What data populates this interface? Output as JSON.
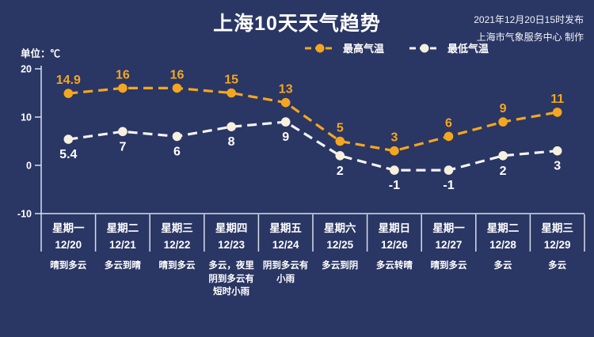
{
  "header": {
    "title": "上海10天天气趋势",
    "publish_line1": "2021年12月20日15时发布",
    "publish_line2": "上海市气象服务中心 制作"
  },
  "colors": {
    "bg": "#2A3664",
    "text": "#FFFFFF",
    "axis": "#D9DEEA",
    "max": "#F5A61F",
    "min-marker": "#F6F0DF",
    "min-line": "#F3F3F1"
  },
  "chart_data": {
    "type": "line",
    "title": "上海10天天气趋势",
    "unit": "单位：℃",
    "ylim": [
      -10,
      20
    ],
    "yticks": [
      20,
      10,
      0,
      -10
    ],
    "grid": "off",
    "legend_position": "top",
    "categories": [
      "星期一",
      "星期二",
      "星期三",
      "星期四",
      "星期五",
      "星期六",
      "星期日",
      "星期一",
      "星期二",
      "星期三"
    ],
    "dates": [
      "12/20",
      "12/21",
      "12/22",
      "12/23",
      "12/24",
      "12/25",
      "12/26",
      "12/27",
      "12/28",
      "12/29"
    ],
    "weather": [
      "晴到多云",
      "多云到晴",
      "晴到多云",
      "多云，夜里阴到多云有短时小雨",
      "阴到多云有小雨",
      "多云到阴",
      "多云转晴",
      "晴到多云",
      "多云",
      "多云"
    ],
    "series": [
      {
        "name": "最高气温",
        "values": [
          14.9,
          16,
          16,
          15,
          13,
          5,
          3,
          6,
          9,
          11
        ],
        "labels": [
          "14.9",
          "16",
          "16",
          "15",
          "13",
          "5",
          "3",
          "6",
          "9",
          "11"
        ],
        "color": "#F5A61F",
        "line_color": "#F5A61F",
        "label_color": "#F5A61F",
        "label_side": "above"
      },
      {
        "name": "最低气温",
        "values": [
          5.4,
          7,
          6,
          8,
          9,
          2,
          -1,
          -1,
          2,
          3
        ],
        "labels": [
          "5.4",
          "7",
          "6",
          "8",
          "9",
          "2",
          "-1",
          "-1",
          "2",
          "3"
        ],
        "color": "#F6F0DF",
        "line_color": "#F3F3F1",
        "label_color": "#FFFFFF",
        "label_side": "below"
      }
    ]
  }
}
